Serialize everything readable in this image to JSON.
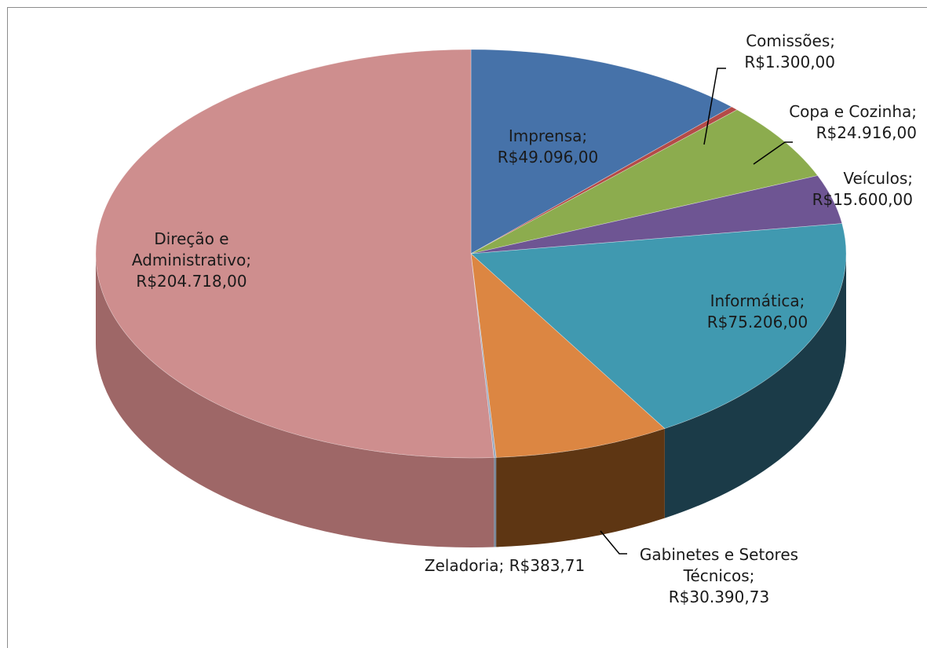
{
  "chart_data": {
    "type": "pie",
    "variant": "3d",
    "title": "",
    "slices": [
      {
        "name": "Imprensa",
        "value": 49096.0,
        "label": "Imprensa;",
        "value_label": "R$49.096,00",
        "color": "#4672a9",
        "side_color": "#2a4a74"
      },
      {
        "name": "Comissões",
        "value": 1300.0,
        "label": "Comissões;",
        "value_label": "R$1.300,00",
        "color": "#b44b48",
        "side_color": "#7a2e2c"
      },
      {
        "name": "Copa e Cozinha",
        "value": 24916.0,
        "label": "Copa e Cozinha;",
        "value_label": "R$24.916,00",
        "color": "#8cac4e",
        "side_color": "#5d7530"
      },
      {
        "name": "Veículos",
        "value": 15600.0,
        "label": "Veículos;",
        "value_label": "R$15.600,00",
        "color": "#6e5593",
        "side_color": "#463460"
      },
      {
        "name": "Informática",
        "value": 75206.0,
        "label": "Informática;",
        "value_label": "R$75.206,00",
        "color": "#4099b0",
        "side_color": "#1b3b48"
      },
      {
        "name": "Gabinetes e Setores Técnicos",
        "value": 30390.73,
        "label": "Gabinetes e Setores Técnicos;",
        "label_lines": [
          "Gabinetes e Setores",
          "Técnicos;"
        ],
        "value_label": "R$30.390,73",
        "color": "#dc8642",
        "side_color": "#5e3613"
      },
      {
        "name": "Zeladoria",
        "value": 383.71,
        "label": "Zeladoria; R$383,71",
        "value_label": "",
        "color": "#9aa9bf",
        "side_color": "#7a8899"
      },
      {
        "name": "Direção e Administrativo",
        "value": 204718.0,
        "label": "Direção e Administrativo;",
        "label_lines": [
          "Direção e",
          "Administrativo;"
        ],
        "value_label": "R$204.718,00",
        "color": "#ce8e8e",
        "side_color": "#9e6767"
      }
    ]
  }
}
